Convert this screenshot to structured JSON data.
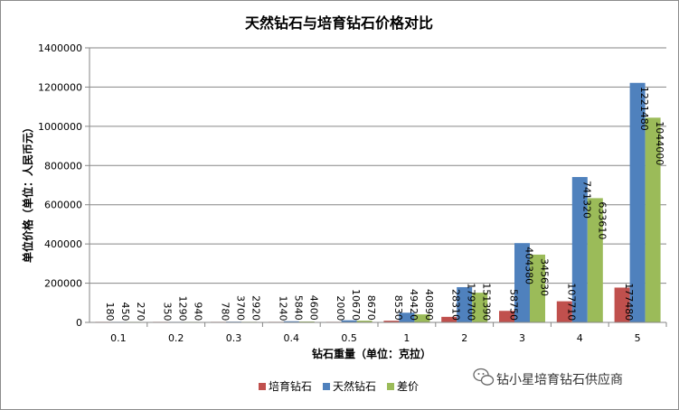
{
  "chart_data": {
    "type": "bar",
    "title": "天然钻石与培育钻石价格对比",
    "xlabel": "钻石重量（单位：克拉）",
    "ylabel": "单位价格（单位：人民币元）",
    "categories": [
      "0.1",
      "0.2",
      "0.3",
      "0.4",
      "0.5",
      "1",
      "2",
      "3",
      "4",
      "5"
    ],
    "ylim": [
      0,
      1400000
    ],
    "yticks": [
      0,
      200000,
      400000,
      600000,
      800000,
      1000000,
      1200000,
      1400000
    ],
    "grid": true,
    "legend_position": "bottom",
    "series": [
      {
        "name": "培育钻石",
        "color": "#C0504D",
        "values": [
          180,
          350,
          780,
          1240,
          2000,
          8530,
          28310,
          58750,
          107710,
          177480
        ],
        "labels": [
          "180",
          "350",
          "780",
          "1240",
          "2000",
          "8530",
          "28310",
          "58750",
          "107710",
          "177480"
        ]
      },
      {
        "name": "天然钻石",
        "color": "#4F81BD",
        "values": [
          450,
          1290,
          3700,
          5840,
          10670,
          49420,
          179700,
          404380,
          741320,
          1221480
        ],
        "labels": [
          "450",
          "1290",
          "3700",
          "5840",
          "10670",
          "49420",
          "179700",
          "404380",
          "741320",
          "1221480"
        ]
      },
      {
        "name": "差价",
        "color": "#9BBB59",
        "values": [
          270,
          940,
          2920,
          4600,
          8670,
          40890,
          151390,
          345630,
          633610,
          1044000
        ],
        "labels": [
          "270",
          "940",
          "2920",
          "4600",
          "8670",
          "40890",
          "151390",
          "345630",
          "633610",
          "1044000"
        ]
      }
    ]
  },
  "watermark": {
    "text": "钻小星培育钻石供应商",
    "icon": "wechat-icon"
  }
}
